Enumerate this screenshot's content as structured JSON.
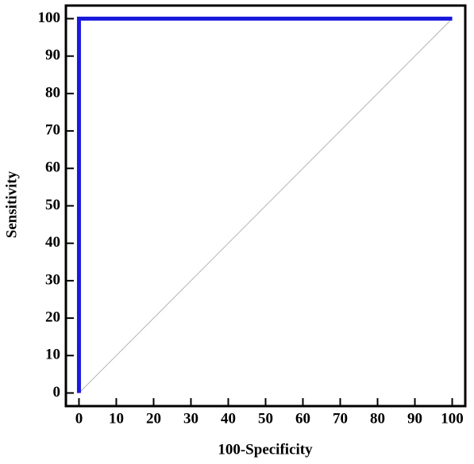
{
  "chart_data": {
    "type": "line",
    "xlabel": "100-Specificity",
    "ylabel": "Sensitivity",
    "series": [
      {
        "color": "#1a1adc",
        "width": 5,
        "x": [
          0,
          0,
          100
        ],
        "values": [
          0,
          100,
          100
        ]
      },
      {
        "color": "#b4b4b4",
        "width": 1,
        "x": [
          0,
          100
        ],
        "values": [
          0,
          100
        ]
      }
    ],
    "xlim": [
      -3.5,
      103.5
    ],
    "ylim": [
      -3.5,
      103.5
    ],
    "xticks": [
      0,
      10,
      20,
      30,
      40,
      50,
      60,
      70,
      80,
      90,
      100
    ],
    "yticks": [
      0,
      10,
      20,
      30,
      40,
      50,
      60,
      70,
      80,
      90,
      100
    ],
    "grid": false
  }
}
